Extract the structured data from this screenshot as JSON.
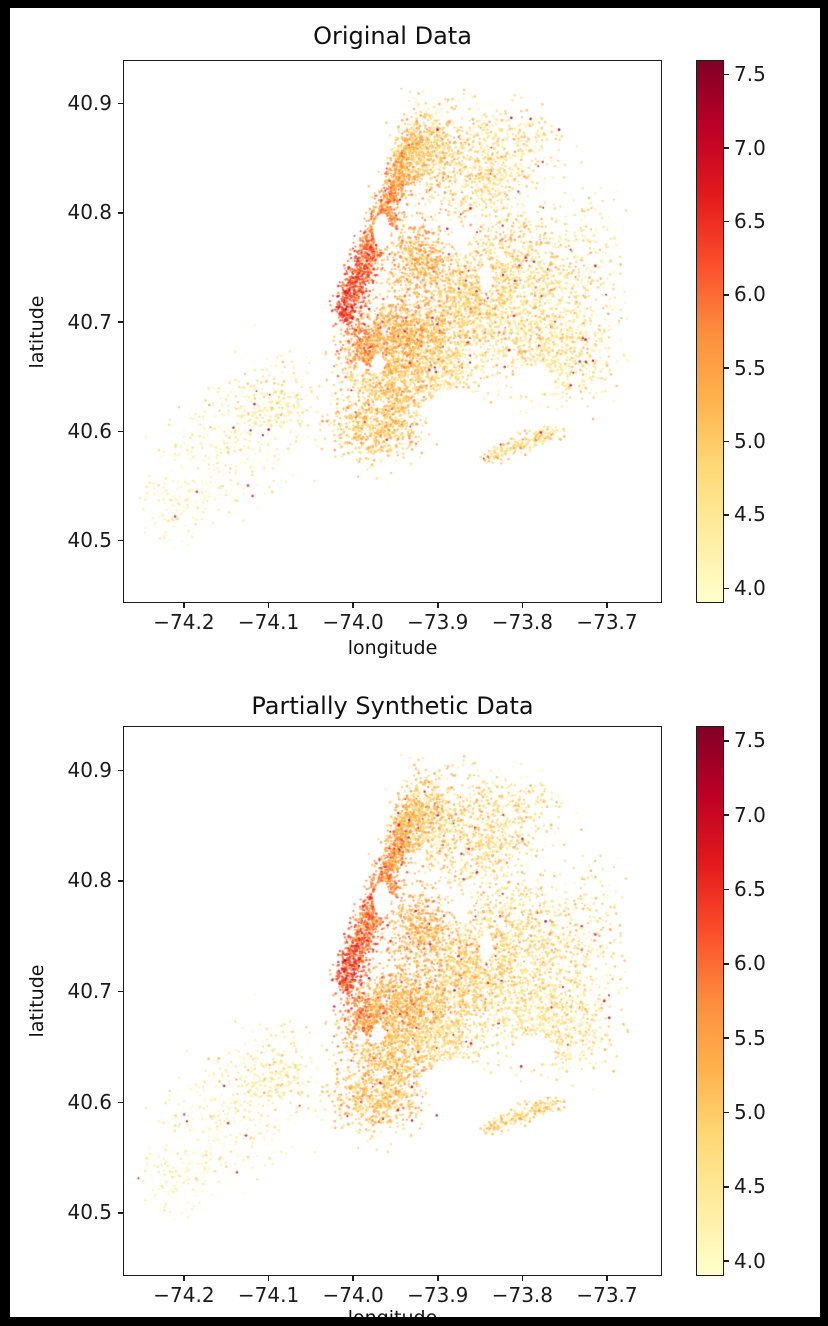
{
  "figure": {
    "background": "#ffffff",
    "page_background": "#000000"
  },
  "chart_data": {
    "type": "scatter",
    "description": "Two geographic scatter plots of point locations over New York City, colored by a continuous value on a YlOrRd colormap with vertical colorbars.",
    "colormap": {
      "name": "YlOrRd",
      "vmin": 3.9,
      "vmax": 7.6,
      "stops": [
        [
          0.0,
          "#ffffcc"
        ],
        [
          0.125,
          "#ffeda0"
        ],
        [
          0.25,
          "#fed976"
        ],
        [
          0.375,
          "#feb24c"
        ],
        [
          0.5,
          "#fd8d3c"
        ],
        [
          0.625,
          "#fc4e2a"
        ],
        [
          0.75,
          "#e31a1c"
        ],
        [
          0.875,
          "#bd0026"
        ],
        [
          1.0,
          "#800026"
        ]
      ]
    },
    "shared": {
      "xlabel": "longitude",
      "ylabel": "latitude",
      "xlim": [
        -74.272,
        -73.635
      ],
      "ylim": [
        40.443,
        40.94
      ],
      "xticks": [
        -74.2,
        -74.1,
        -74.0,
        -73.9,
        -73.8,
        -73.7
      ],
      "yticks": [
        40.5,
        40.6,
        40.7,
        40.8,
        40.9
      ],
      "colorbar_ticks": [
        4.0,
        4.5,
        5.0,
        5.5,
        6.0,
        6.5,
        7.0,
        7.5
      ],
      "grid": false,
      "legend": "none",
      "point_alpha": 0.85,
      "point_radius": [
        0.9,
        1.4
      ],
      "position_seed": 20250607,
      "outliers": {
        "probability": 0.012,
        "vmin": 6.9,
        "vrange": 0.7
      },
      "data_bounds": [
        -74.255,
        40.492,
        -73.672,
        40.915
      ],
      "regions": [
        {
          "name": "manhattan",
          "type": "strip",
          "p1": [
            -74.012,
            40.703
          ],
          "p2": [
            -73.924,
            40.872
          ],
          "w": 0.0085,
          "n": 1700,
          "v1": 6.35,
          "v2": 5.15,
          "vs": 0.45
        },
        {
          "name": "rockaway-peninsula",
          "type": "strip",
          "p1": [
            -73.845,
            40.576
          ],
          "p2": [
            -73.754,
            40.6
          ],
          "w": 0.0038,
          "n": 230,
          "v1": 4.9,
          "v2": 4.7,
          "vs": 0.5
        },
        {
          "name": "bronx-west",
          "type": "gauss",
          "c": [
            -73.907,
            40.856
          ],
          "s": [
            0.02,
            0.024
          ],
          "n": 600,
          "v": 4.95,
          "vs": 0.45
        },
        {
          "name": "bronx-east",
          "type": "gauss",
          "c": [
            -73.845,
            40.838
          ],
          "s": [
            0.024,
            0.028
          ],
          "n": 620,
          "v": 4.75,
          "vs": 0.42
        },
        {
          "name": "pelham-bay",
          "type": "gauss",
          "c": [
            -73.795,
            40.862
          ],
          "s": [
            0.024,
            0.02
          ],
          "n": 170,
          "v": 4.65,
          "vs": 0.4
        },
        {
          "name": "queens-astoria",
          "type": "gauss",
          "c": [
            -73.921,
            40.757
          ],
          "s": [
            0.017,
            0.017
          ],
          "n": 520,
          "v": 5.25,
          "vs": 0.4
        },
        {
          "name": "queens-central",
          "type": "gauss",
          "c": [
            -73.863,
            40.722
          ],
          "s": [
            0.03,
            0.026
          ],
          "n": 950,
          "v": 4.95,
          "vs": 0.4
        },
        {
          "name": "queens-flushing",
          "type": "gauss",
          "c": [
            -73.795,
            40.757
          ],
          "s": [
            0.034,
            0.027
          ],
          "n": 560,
          "v": 4.8,
          "vs": 0.42
        },
        {
          "name": "queens-jamaica",
          "type": "gauss",
          "c": [
            -73.788,
            40.692
          ],
          "s": [
            0.034,
            0.027
          ],
          "n": 720,
          "v": 4.65,
          "vs": 0.38
        },
        {
          "name": "queens-southeast",
          "type": "gauss",
          "c": [
            -73.742,
            40.666
          ],
          "s": [
            0.026,
            0.02
          ],
          "n": 320,
          "v": 4.6,
          "vs": 0.38
        },
        {
          "name": "queens-far-east",
          "type": "gauss",
          "c": [
            -73.715,
            40.745
          ],
          "s": [
            0.028,
            0.035
          ],
          "n": 210,
          "v": 4.7,
          "vs": 0.45
        },
        {
          "name": "brooklyn-brownstone",
          "type": "gauss",
          "c": [
            -73.986,
            40.677
          ],
          "s": [
            0.013,
            0.013
          ],
          "n": 330,
          "v": 5.75,
          "vs": 0.45
        },
        {
          "name": "brooklyn-north",
          "type": "gauss",
          "c": [
            -73.939,
            40.69
          ],
          "s": [
            0.025,
            0.018
          ],
          "n": 900,
          "v": 5.3,
          "vs": 0.42
        },
        {
          "name": "brooklyn-central",
          "type": "gauss",
          "c": [
            -73.953,
            40.645
          ],
          "s": [
            0.028,
            0.027
          ],
          "n": 1100,
          "v": 5.05,
          "vs": 0.4
        },
        {
          "name": "brooklyn-south",
          "type": "gauss",
          "c": [
            -73.976,
            40.601
          ],
          "s": [
            0.026,
            0.017
          ],
          "n": 470,
          "v": 5.0,
          "vs": 0.42
        },
        {
          "name": "brooklyn-east",
          "type": "gauss",
          "c": [
            -73.889,
            40.662
          ],
          "s": [
            0.023,
            0.021
          ],
          "n": 520,
          "v": 4.75,
          "vs": 0.35
        },
        {
          "name": "staten-island-north",
          "type": "gauss",
          "c": [
            -74.095,
            40.625
          ],
          "s": [
            0.03,
            0.02
          ],
          "n": 270,
          "v": 4.5,
          "vs": 0.4
        },
        {
          "name": "staten-island-mid",
          "type": "gauss",
          "c": [
            -74.15,
            40.582
          ],
          "s": [
            0.036,
            0.026
          ],
          "n": 250,
          "v": 4.35,
          "vs": 0.35
        },
        {
          "name": "staten-island-south",
          "type": "gauss",
          "c": [
            -74.213,
            40.528
          ],
          "s": [
            0.026,
            0.02
          ],
          "n": 130,
          "v": 4.3,
          "vs": 0.3
        }
      ],
      "holes": [
        {
          "name": "central-park",
          "c": [
            -73.9655,
            40.783
          ],
          "r": [
            0.01,
            0.017
          ]
        },
        {
          "name": "prospect-park",
          "c": [
            -73.97,
            40.661
          ],
          "r": [
            0.0085,
            0.009
          ]
        },
        {
          "name": "jamaica-bay",
          "c": [
            -73.876,
            40.612
          ],
          "r": [
            0.036,
            0.027
          ]
        },
        {
          "name": "jfk-airport",
          "c": [
            -73.786,
            40.646
          ],
          "r": [
            0.024,
            0.014
          ]
        },
        {
          "name": "laguardia-airport",
          "c": [
            -73.874,
            40.776
          ],
          "r": [
            0.013,
            0.008
          ]
        },
        {
          "name": "flushing-meadows",
          "c": [
            -73.841,
            40.74
          ],
          "r": [
            0.008,
            0.013
          ]
        },
        {
          "name": "greenwood",
          "c": [
            -73.99,
            40.658
          ],
          "r": [
            0.006,
            0.006
          ]
        }
      ]
    },
    "charts": [
      {
        "title": "Original Data",
        "value_seed": 11,
        "xlabel_clipped": false
      },
      {
        "title": "Partially Synthetic Data",
        "value_seed": 23,
        "xlabel_clipped": true
      }
    ]
  }
}
